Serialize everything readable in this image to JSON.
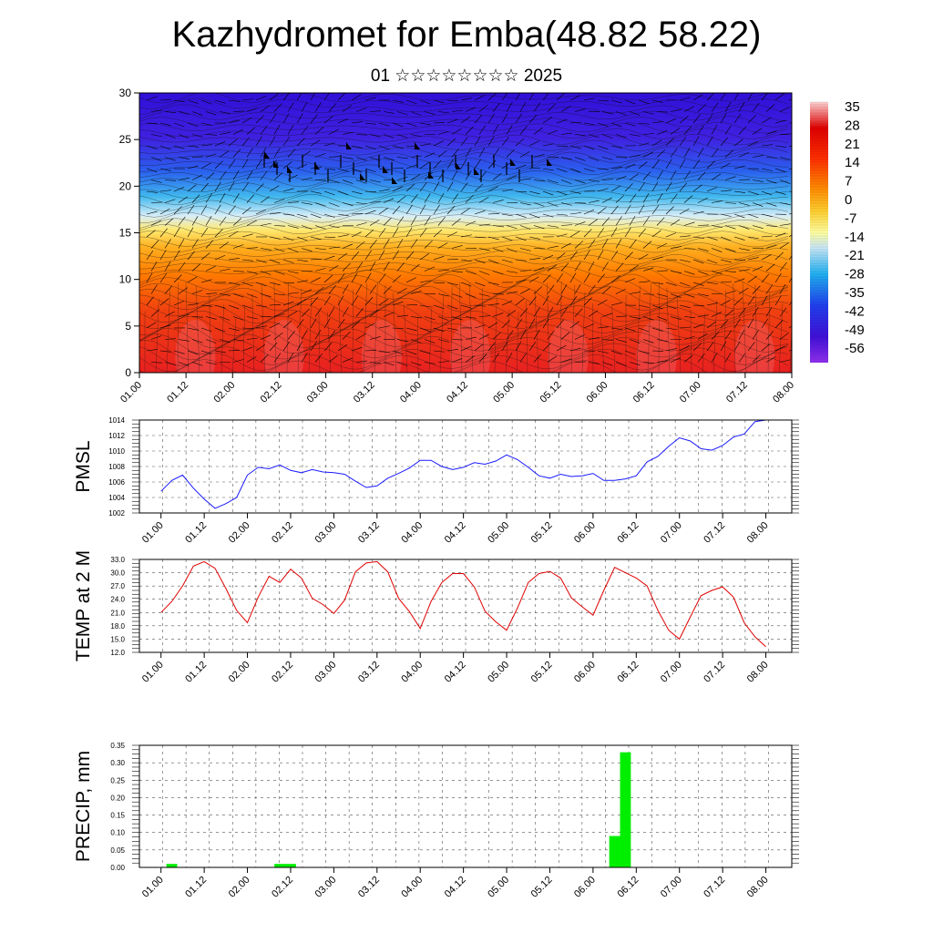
{
  "header": {
    "title": "Kazhydromet for Emba(48.82 58.22)",
    "subtitle": "01 ☆☆☆☆☆☆☆☆ 2025"
  },
  "time_ticks": [
    "01.00",
    "01.12",
    "02.00",
    "02.12",
    "03.00",
    "03.12",
    "04.00",
    "04.12",
    "05.00",
    "05.12",
    "06.00",
    "06.12",
    "07.00",
    "07.12",
    "08.00"
  ],
  "colors": {
    "pmsl_line": "#1a1aff",
    "temp_line": "#e00000",
    "precip_bar": "#00ee00",
    "contour": "#000000"
  },
  "chart_data": [
    {
      "type": "heatmap",
      "name": "temperature-cross-section",
      "x": [
        "01.00",
        "01.12",
        "02.00",
        "02.12",
        "03.00",
        "03.12",
        "04.00",
        "04.12",
        "05.00",
        "05.12",
        "06.00",
        "06.12",
        "07.00",
        "07.12",
        "08.00"
      ],
      "ylim": [
        0,
        30
      ],
      "yticks": [
        0,
        5,
        10,
        15,
        20,
        25,
        30
      ],
      "colorbar_labels": [
        "35",
        "28",
        "21",
        "14",
        "7",
        "0",
        "-7",
        "-14",
        "-21",
        "-28",
        "-35",
        "-42",
        "-49",
        "-56"
      ],
      "colorscale": [
        "#ffd0d0",
        "#e00000",
        "#ff5500",
        "#ff9a00",
        "#ffe860",
        "#cfe8f8",
        "#3fb6ee",
        "#2050ee",
        "#5010dd",
        "#9030ee"
      ],
      "value_range": [
        -60,
        38
      ],
      "surface_min": [
        27,
        33,
        19,
        31,
        21,
        33,
        18,
        30,
        17,
        31,
        21,
        32,
        15,
        27,
        13
      ],
      "wind_barbs": "present"
    },
    {
      "type": "line",
      "name": "pmsl",
      "ylabel": "PMSL",
      "ylim": [
        1002,
        1014
      ],
      "yticks": [
        "1002",
        "1004",
        "1006",
        "1008",
        "1010",
        "1012",
        "1014"
      ],
      "x": [
        "01.00",
        "01.03",
        "01.06",
        "01.09",
        "01.12",
        "01.15",
        "01.18",
        "01.21",
        "02.00",
        "02.03",
        "02.06",
        "02.09",
        "02.12",
        "02.15",
        "02.18",
        "02.21",
        "03.00",
        "03.03",
        "03.06",
        "03.09",
        "03.12",
        "03.15",
        "03.18",
        "03.21",
        "04.00",
        "04.03",
        "04.06",
        "04.09",
        "04.12",
        "04.15",
        "04.18",
        "04.21",
        "05.00",
        "05.03",
        "05.06",
        "05.09",
        "05.12",
        "05.15",
        "05.18",
        "05.21",
        "06.00",
        "06.03",
        "06.06",
        "06.09",
        "06.12",
        "06.15",
        "06.18",
        "06.21",
        "07.00",
        "07.03",
        "07.06",
        "07.09",
        "07.12",
        "07.15",
        "07.18",
        "07.21",
        "08.00"
      ],
      "values": [
        1004.8,
        1006.2,
        1006.9,
        1005.2,
        1003.8,
        1002.6,
        1003.2,
        1004.0,
        1006.9,
        1007.9,
        1007.7,
        1008.2,
        1007.5,
        1007.2,
        1007.6,
        1007.3,
        1007.2,
        1007.0,
        1006.1,
        1005.3,
        1005.5,
        1006.5,
        1007.1,
        1007.8,
        1008.8,
        1008.8,
        1008.0,
        1007.6,
        1007.9,
        1008.5,
        1008.3,
        1008.7,
        1009.5,
        1008.9,
        1007.9,
        1006.8,
        1006.5,
        1007.0,
        1006.7,
        1006.8,
        1007.1,
        1006.2,
        1006.2,
        1006.4,
        1006.8,
        1008.6,
        1009.3,
        1010.6,
        1011.7,
        1011.3,
        1010.3,
        1010.1,
        1010.7,
        1011.8,
        1012.2,
        1013.8,
        1014.0
      ]
    },
    {
      "type": "line",
      "name": "temp-2m",
      "ylabel": "TEMP at 2 M",
      "ylim": [
        12,
        33
      ],
      "yticks": [
        "12.0",
        "15.0",
        "18.0",
        "21.0",
        "24.0",
        "27.0",
        "30.0",
        "33.0"
      ],
      "x": [
        "01.00",
        "01.03",
        "01.06",
        "01.09",
        "01.12",
        "01.15",
        "01.18",
        "01.21",
        "02.00",
        "02.03",
        "02.06",
        "02.09",
        "02.12",
        "02.15",
        "02.18",
        "02.21",
        "03.00",
        "03.03",
        "03.06",
        "03.09",
        "03.12",
        "03.15",
        "03.18",
        "03.21",
        "04.00",
        "04.03",
        "04.06",
        "04.09",
        "04.12",
        "04.15",
        "04.18",
        "04.21",
        "05.00",
        "05.03",
        "05.06",
        "05.09",
        "05.12",
        "05.15",
        "05.18",
        "05.21",
        "06.00",
        "06.03",
        "06.06",
        "06.09",
        "06.12",
        "06.15",
        "06.18",
        "06.21",
        "07.00",
        "07.03",
        "07.06",
        "07.09",
        "07.12",
        "07.15",
        "07.18",
        "07.21",
        "08.00"
      ],
      "values": [
        21.0,
        23.5,
        27.0,
        31.5,
        32.5,
        31.0,
        26.5,
        21.5,
        18.7,
        24.5,
        29.2,
        27.8,
        30.8,
        28.8,
        24.2,
        22.8,
        20.8,
        23.8,
        30.2,
        32.2,
        32.5,
        30.2,
        24.2,
        21.2,
        17.4,
        23.5,
        27.8,
        29.8,
        29.8,
        26.8,
        21.3,
        18.9,
        17.0,
        22.0,
        27.8,
        29.8,
        30.3,
        28.8,
        24.3,
        22.3,
        20.4,
        26.0,
        31.2,
        30.0,
        28.8,
        27.0,
        21.5,
        17.0,
        15.0,
        20.0,
        24.8,
        26.0,
        26.8,
        24.5,
        18.7,
        15.5,
        13.3
      ]
    },
    {
      "type": "bar",
      "name": "precip",
      "ylabel": "PRECIP, mm",
      "ylim": [
        0,
        0.35
      ],
      "yticks": [
        "0.00",
        "0.05",
        "0.10",
        "0.15",
        "0.20",
        "0.25",
        "0.30",
        "0.35"
      ],
      "bars": [
        {
          "x": "01.03",
          "value": 0.01
        },
        {
          "x": "02.09",
          "value": 0.01
        },
        {
          "x": "02.12",
          "value": 0.01
        },
        {
          "x": "06.06",
          "value": 0.09
        },
        {
          "x": "06.09",
          "value": 0.33
        }
      ]
    }
  ]
}
